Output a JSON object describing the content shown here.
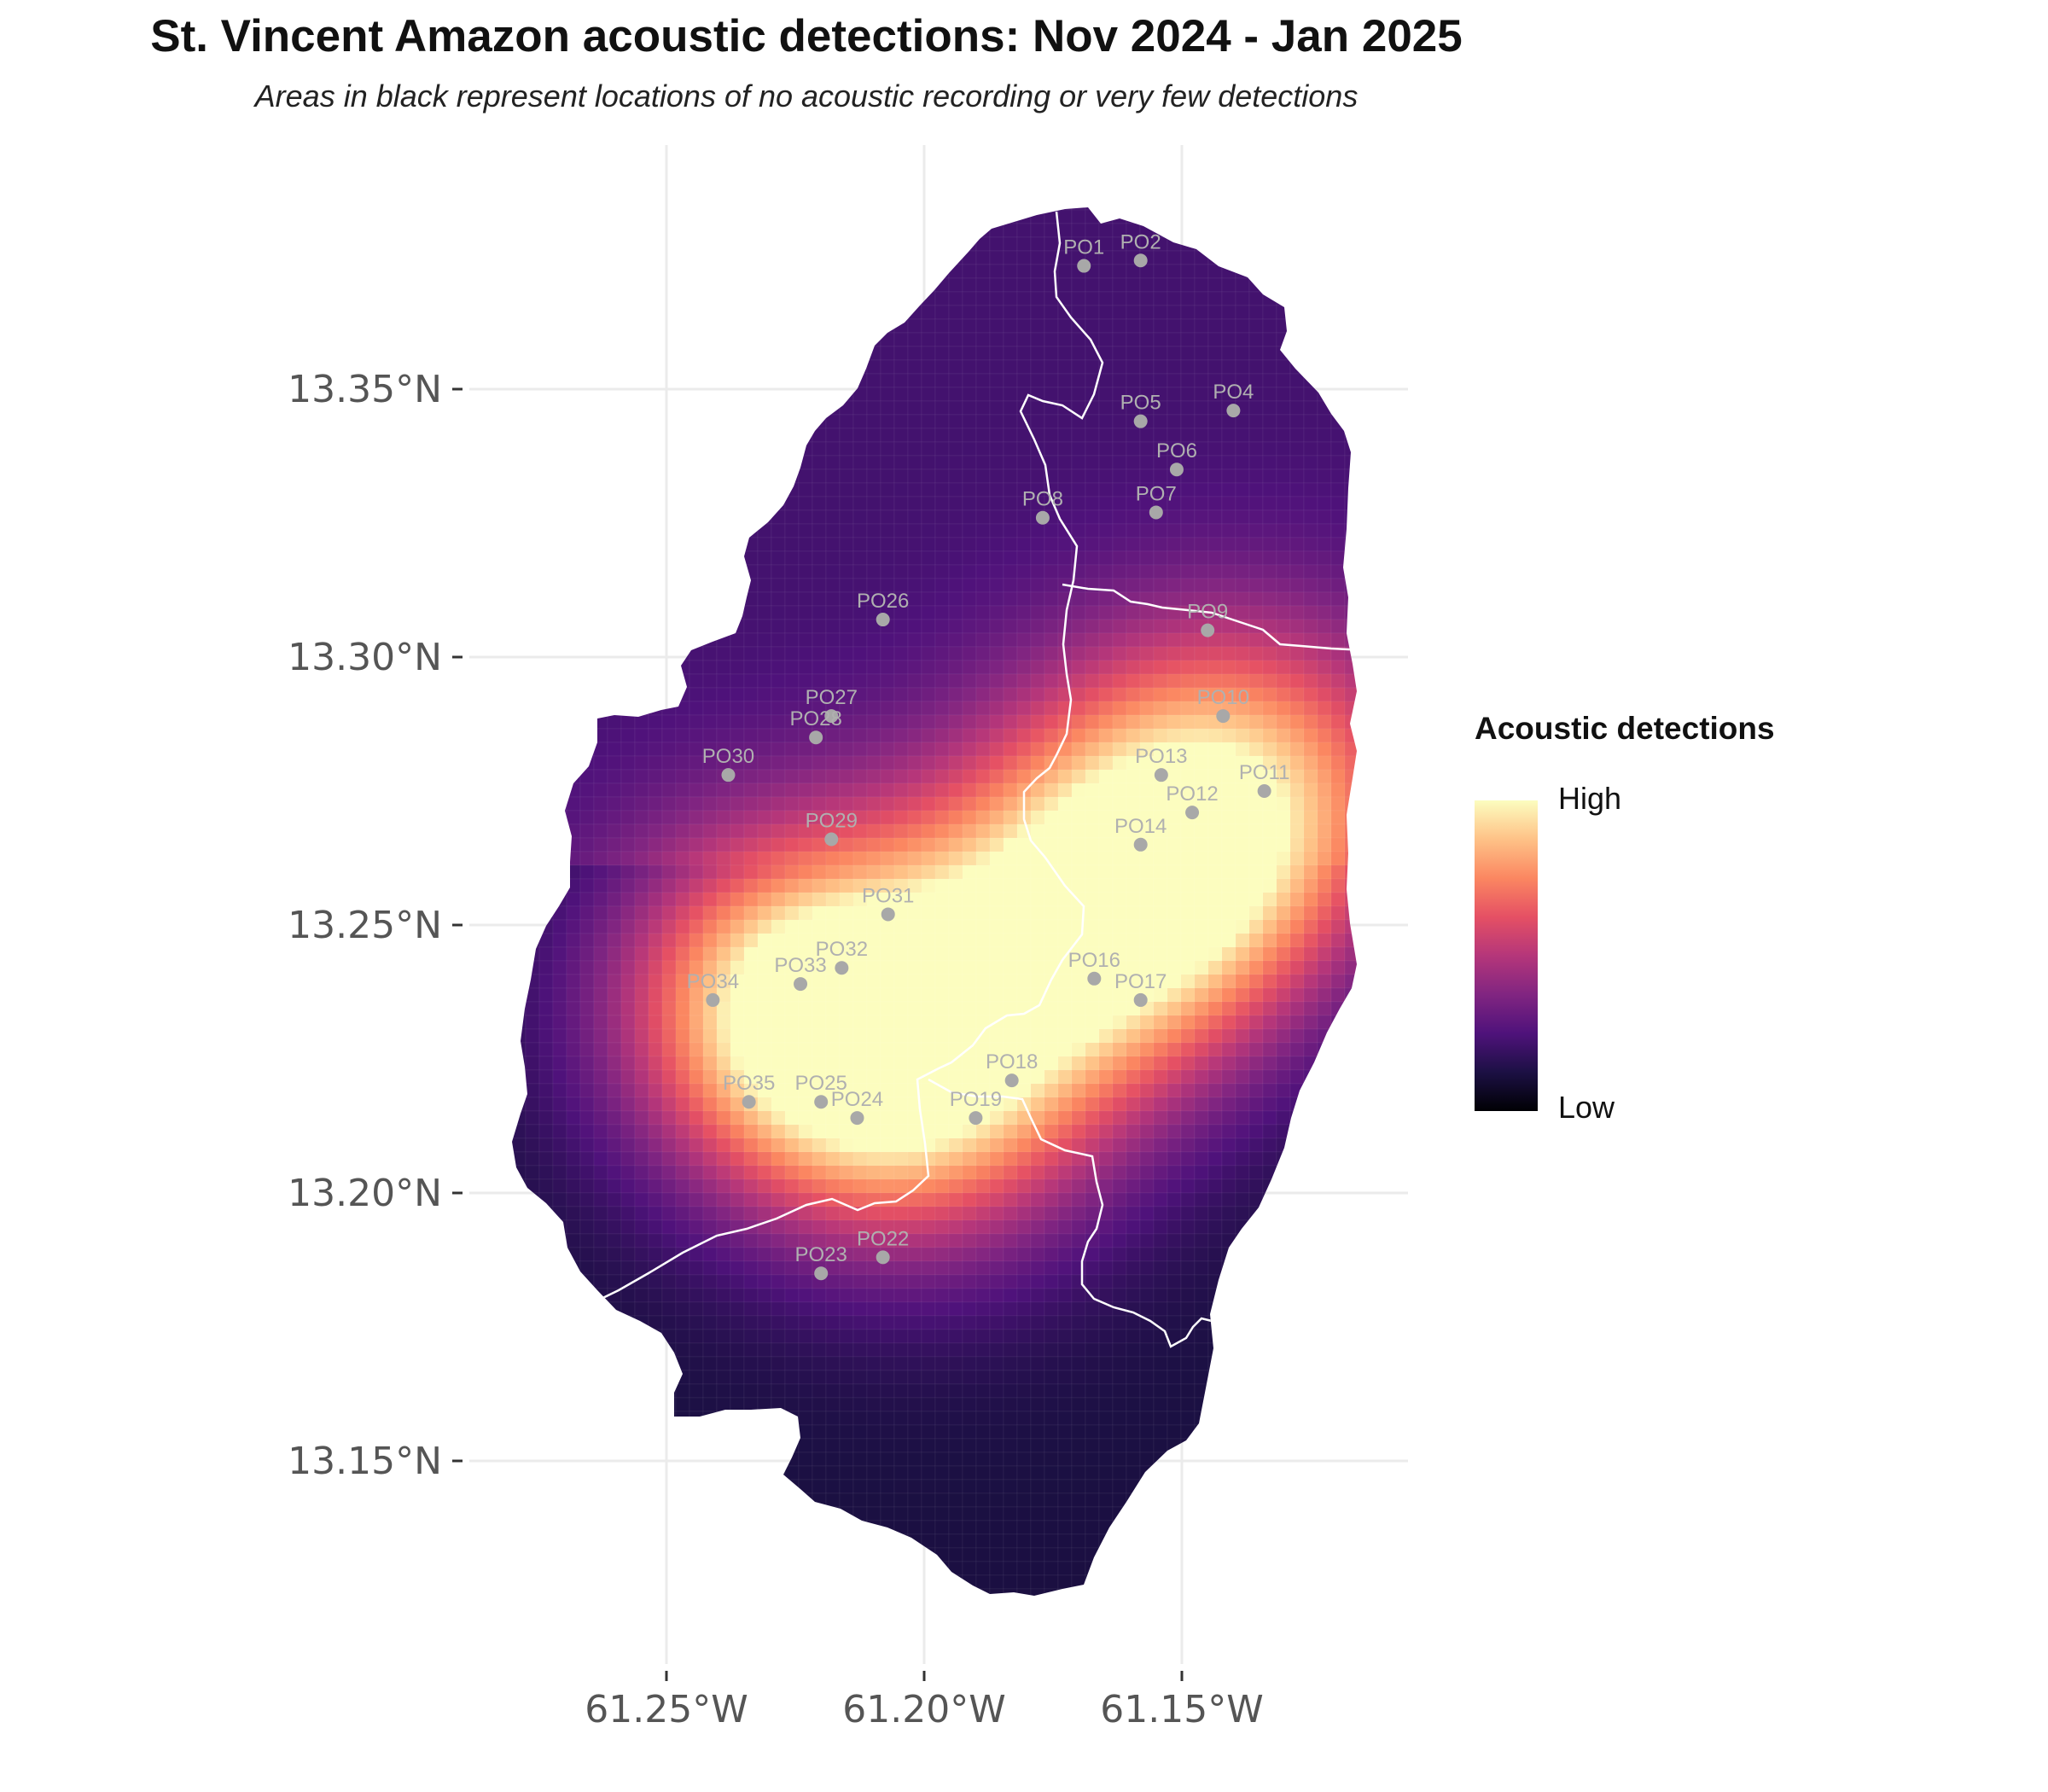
{
  "title": "St. Vincent Amazon acoustic detections: Nov 2024 - Jan 2025",
  "subtitle": "Areas in black represent locations of no acoustic recording or very few detections",
  "legend": {
    "title": "Acoustic detections",
    "high_label": "High",
    "low_label": "Low"
  },
  "axes": {
    "x_ticks": [
      {
        "value": -61.25,
        "label": "61.25°W"
      },
      {
        "value": -61.2,
        "label": "61.20°W"
      },
      {
        "value": -61.15,
        "label": "61.15°W"
      }
    ],
    "y_ticks": [
      {
        "value": 13.35,
        "label": "13.35°N"
      },
      {
        "value": 13.3,
        "label": "13.30°N"
      },
      {
        "value": 13.25,
        "label": "13.25°N"
      },
      {
        "value": 13.2,
        "label": "13.20°N"
      },
      {
        "value": 13.15,
        "label": "13.15°N"
      }
    ]
  },
  "colors": {
    "background": "#ffffff",
    "grid": "#ebebeb",
    "boundary": "#ffffff",
    "site_marker": "#a8a8a8",
    "scale": [
      "#000004",
      "#1c1044",
      "#4f127b",
      "#812581",
      "#b5367a",
      "#e55064",
      "#fb8761",
      "#fec287",
      "#fcfdbf"
    ]
  },
  "chart_data": {
    "type": "heatmap",
    "extent": {
      "lon": [
        -61.27,
        -61.12
      ],
      "lat": [
        13.123,
        13.385
      ]
    },
    "sites": [
      {
        "id": "PO1",
        "lon": -61.169,
        "lat": 13.373
      },
      {
        "id": "PO2",
        "lon": -61.158,
        "lat": 13.374
      },
      {
        "id": "PO4",
        "lon": -61.14,
        "lat": 13.346
      },
      {
        "id": "PO5",
        "lon": -61.158,
        "lat": 13.344
      },
      {
        "id": "PO6",
        "lon": -61.151,
        "lat": 13.335
      },
      {
        "id": "PO7",
        "lon": -61.155,
        "lat": 13.327
      },
      {
        "id": "PO8",
        "lon": -61.177,
        "lat": 13.326
      },
      {
        "id": "PO9",
        "lon": -61.145,
        "lat": 13.305
      },
      {
        "id": "PO26",
        "lon": -61.208,
        "lat": 13.307
      },
      {
        "id": "PO10",
        "lon": -61.142,
        "lat": 13.289
      },
      {
        "id": "PO27",
        "lon": -61.218,
        "lat": 13.289
      },
      {
        "id": "PO28",
        "lon": -61.221,
        "lat": 13.285
      },
      {
        "id": "PO30",
        "lon": -61.238,
        "lat": 13.278
      },
      {
        "id": "PO13",
        "lon": -61.154,
        "lat": 13.278
      },
      {
        "id": "PO11",
        "lon": -61.134,
        "lat": 13.275
      },
      {
        "id": "PO12",
        "lon": -61.148,
        "lat": 13.271
      },
      {
        "id": "PO29",
        "lon": -61.218,
        "lat": 13.266
      },
      {
        "id": "PO14",
        "lon": -61.158,
        "lat": 13.265
      },
      {
        "id": "PO31",
        "lon": -61.207,
        "lat": 13.252
      },
      {
        "id": "PO32",
        "lon": -61.216,
        "lat": 13.242
      },
      {
        "id": "PO33",
        "lon": -61.224,
        "lat": 13.239
      },
      {
        "id": "PO16",
        "lon": -61.167,
        "lat": 13.24
      },
      {
        "id": "PO34",
        "lon": -61.241,
        "lat": 13.236
      },
      {
        "id": "PO17",
        "lon": -61.158,
        "lat": 13.236
      },
      {
        "id": "PO18",
        "lon": -61.183,
        "lat": 13.221
      },
      {
        "id": "PO35",
        "lon": -61.234,
        "lat": 13.217
      },
      {
        "id": "PO25",
        "lon": -61.22,
        "lat": 13.217
      },
      {
        "id": "PO24",
        "lon": -61.213,
        "lat": 13.214
      },
      {
        "id": "PO19",
        "lon": -61.19,
        "lat": 13.214
      },
      {
        "id": "PO22",
        "lon": -61.208,
        "lat": 13.188
      },
      {
        "id": "PO23",
        "lon": -61.22,
        "lat": 13.185
      }
    ],
    "hotspots": [
      {
        "lon": -61.223,
        "lat": 13.236,
        "weight": 1.0
      },
      {
        "lon": -61.165,
        "lat": 13.252,
        "weight": 1.0
      },
      {
        "lon": -61.2,
        "lat": 13.22,
        "weight": 0.75
      },
      {
        "lon": -61.14,
        "lat": 13.275,
        "weight": 0.85
      }
    ]
  }
}
